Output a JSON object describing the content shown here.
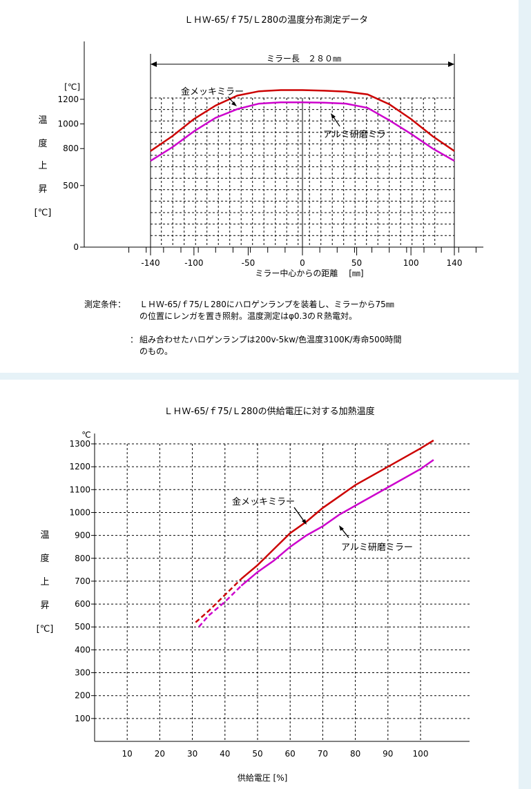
{
  "charts": [
    {
      "type": "line",
      "title": "ＬＨＷ-65/ｆ75/Ｌ280の温度分布測定データ",
      "xlabel": "ミラー中心からの距離　 [㎜]",
      "ylabel_chars": [
        "温",
        "度",
        "上",
        "昇",
        "[℃]"
      ],
      "y_unit": "[℃]",
      "xlim": [
        -160,
        160
      ],
      "ylim": [
        0,
        1300
      ],
      "x_ticks": [
        -140,
        -100,
        -50,
        0,
        50,
        100,
        140
      ],
      "y_ticks": [
        0,
        500,
        800,
        1000,
        1200
      ],
      "mirror_span_label": "ミラー長　２８０㎜",
      "mirror_span": [
        -140,
        140
      ],
      "grid": true,
      "series": [
        {
          "name": "金メッキミラー",
          "color": "#cc0000",
          "x": [
            -140,
            -120,
            -100,
            -80,
            -60,
            -40,
            -20,
            0,
            20,
            40,
            60,
            80,
            100,
            120,
            140
          ],
          "y": [
            780,
            900,
            1040,
            1150,
            1230,
            1265,
            1275,
            1275,
            1270,
            1262,
            1240,
            1160,
            1040,
            900,
            780
          ]
        },
        {
          "name": "アルミ研磨ミラ",
          "color": "#cc00cc",
          "x": [
            -140,
            -120,
            -100,
            -80,
            -60,
            -40,
            -20,
            0,
            20,
            40,
            60,
            80,
            100,
            120,
            140
          ],
          "y": [
            700,
            810,
            940,
            1050,
            1120,
            1165,
            1175,
            1175,
            1172,
            1165,
            1130,
            1030,
            920,
            800,
            700
          ]
        }
      ]
    },
    {
      "type": "line",
      "title": "ＬＨＷ-65/ｆ75/Ｌ280の供給電圧に対する加熱温度",
      "xlabel": "供給電圧 [%]",
      "ylabel_chars": [
        "温",
        "度",
        "上",
        "昇",
        "[℃]"
      ],
      "y_unit": "℃",
      "xlim": [
        0,
        110
      ],
      "ylim": [
        0,
        1350
      ],
      "x_ticks": [
        10,
        20,
        30,
        40,
        50,
        60,
        70,
        80,
        90,
        100
      ],
      "y_ticks": [
        100,
        200,
        300,
        400,
        500,
        600,
        700,
        800,
        900,
        1000,
        1100,
        1200,
        1300
      ],
      "grid": true,
      "series": [
        {
          "name": "金メッキミラー",
          "color": "#cc0000",
          "x": [
            31,
            35,
            40,
            45,
            50,
            55,
            60,
            65,
            70,
            75,
            80,
            90,
            100,
            104
          ],
          "y": [
            520,
            570,
            640,
            710,
            770,
            840,
            910,
            960,
            1020,
            1070,
            1120,
            1200,
            1280,
            1315
          ],
          "dashed_until": 45
        },
        {
          "name": "アルミ研磨ミラー",
          "color": "#cc00cc",
          "x": [
            32,
            35,
            40,
            45,
            50,
            55,
            60,
            65,
            70,
            75,
            80,
            90,
            100,
            104
          ],
          "y": [
            500,
            550,
            610,
            680,
            740,
            790,
            850,
            900,
            940,
            990,
            1030,
            1110,
            1190,
            1230
          ],
          "dashed_until": 45
        }
      ]
    }
  ],
  "conditions": [
    {
      "label": "測定条件：",
      "text": [
        "ＬＨＷ-65/ｆ75/Ｌ280にハロゲンランプを装着し、ミラーから75㎜",
        "の位置にレンガを置き照射。温度測定はφ0.3のＲ熱電対。"
      ]
    },
    {
      "label": "：",
      "text": [
        "組み合わせたハロゲンランプは200v-5kw/色温度3100K/寿命500時間",
        "のもの。"
      ]
    }
  ]
}
